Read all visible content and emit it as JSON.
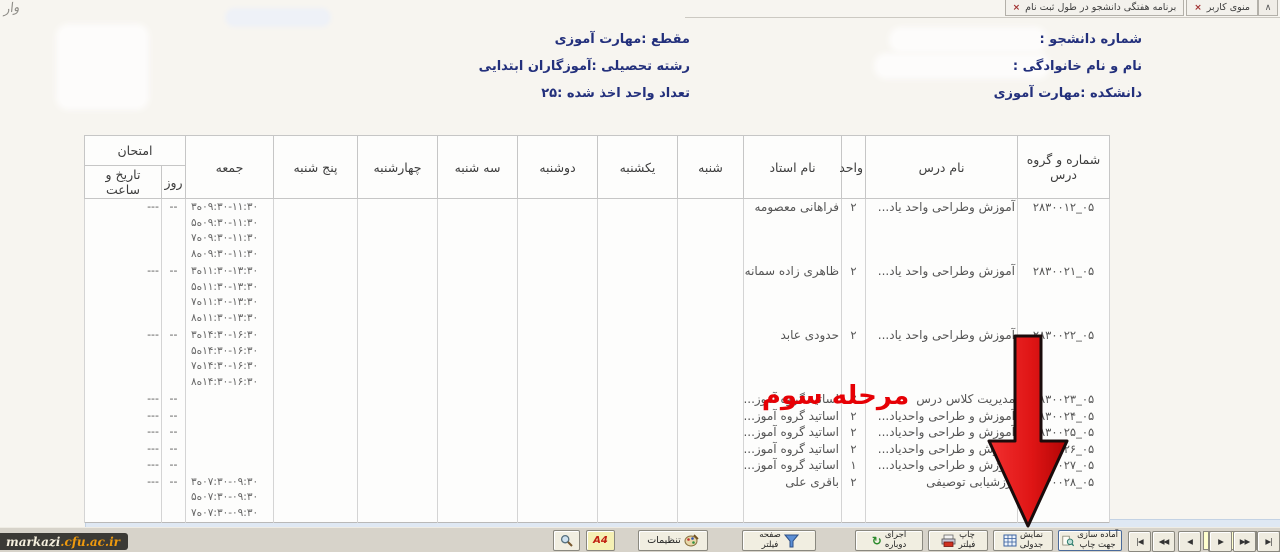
{
  "tabs": [
    {
      "close": "×",
      "label": "برنامه هفتگی دانشجو در طول ثبت نام"
    },
    {
      "close": "×",
      "label": "منوی کاربر"
    }
  ],
  "corner_glyph": "∧",
  "watermark": "وار",
  "student": {
    "id_label": "شماره دانشجو :",
    "name_label": "نام و نام خانوادگی :",
    "faculty": "دانشکده :مهارت آموزی",
    "level": "مقطع :مهارت آموزی",
    "major": "رشته تحصیلی :آموزگاران ابتدایی",
    "units_taken": "تعداد واحد اخذ شده :۲۵"
  },
  "table": {
    "headers": {
      "course_no": "شماره و گروه درس",
      "course_name": "نام درس",
      "units": "واحد",
      "teacher": "نام استاد",
      "days": [
        "شنبه",
        "یکشنبه",
        "دوشنبه",
        "سه شنبه",
        "چهارشنبه",
        "پنج شنبه",
        "جمعه"
      ],
      "exam_group": "امتحان",
      "exam_day": "روز",
      "exam_datetime": "تاریخ و ساعت"
    },
    "rows": [
      {
        "no": "۲۸۳۰۰۱۲_۰۵",
        "name": "آموزش وطراحی واحد یاد...",
        "units": "۲",
        "teacher": "فراهانی معصومه",
        "friday": [
          "۳ه۰۹:۳۰-۱۱:۳۰",
          "۵ه۰۹:۳۰-۱۱:۳۰",
          "۷ه۰۹:۳۰-۱۱:۳۰",
          "۸ه۰۹:۳۰-۱۱:۳۰"
        ],
        "exam_day": "--",
        "exam_datetime": "---"
      },
      {
        "no": "۲۸۳۰۰۲۱_۰۵",
        "name": "آموزش وطراحی واحد یاد...",
        "units": "۲",
        "teacher": "ظاهری زاده سمانه",
        "friday": [
          "۳ه۱۱:۳۰-۱۳:۳۰",
          "۵ه۱۱:۳۰-۱۳:۳۰",
          "۷ه۱۱:۳۰-۱۳:۳۰",
          "۸ه۱۱:۳۰-۱۳:۳۰"
        ],
        "exam_day": "--",
        "exam_datetime": "---"
      },
      {
        "no": "۲۸۳۰۰۲۲_۰۵",
        "name": "آموزش وطراحی واحد یاد...",
        "units": "۲",
        "teacher": "حدودی عابد",
        "friday": [
          "۳ه۱۴:۳۰-۱۶:۳۰",
          "۵ه۱۴:۳۰-۱۶:۳۰",
          "۷ه۱۴:۳۰-۱۶:۳۰",
          "۸ه۱۴:۳۰-۱۶:۳۰"
        ],
        "exam_day": "--",
        "exam_datetime": "---"
      },
      {
        "no": "۲۸۳۰۰۲۳_۰۵",
        "name": "مدیریت کلاس درس",
        "units": "۲",
        "teacher": "اساتید گروه آموز...",
        "friday": [],
        "exam_day": "--",
        "exam_datetime": "---"
      },
      {
        "no": "۲۸۳۰۰۲۴_۰۵",
        "name": "آموزش و طراحی واحدیاد...",
        "units": "۲",
        "teacher": "اساتید گروه آموز...",
        "friday": [],
        "exam_day": "--",
        "exam_datetime": "---"
      },
      {
        "no": "۲۸۳۰۰۲۵_۰۵",
        "name": "آموزش و طراحی واحدیاد...",
        "units": "۲",
        "teacher": "اساتید گروه آموز...",
        "friday": [],
        "exam_day": "--",
        "exam_datetime": "---"
      },
      {
        "no": "۲۸۳۰۰۲۶_۰۵",
        "name": "آموزش و طراحی واحدیاد...",
        "units": "۲",
        "teacher": "اساتید گروه آموز...",
        "friday": [],
        "exam_day": "--",
        "exam_datetime": "---"
      },
      {
        "no": "۲۸۳۰۰۲۷_۰۵",
        "name": "آموزش و طراحی واحدیاد...",
        "units": "۱",
        "teacher": "اساتید گروه آموز...",
        "friday": [],
        "exam_day": "--",
        "exam_datetime": "---"
      },
      {
        "no": "۲۸۳۰۰۲۸_۰۵",
        "name": "ارزشیابی توصیفی",
        "units": "۲",
        "teacher": "باقری علی",
        "friday": [
          "۳ه۰۷:۳۰-۰۹:۳۰",
          "۵ه۰۷:۳۰-۰۹:۳۰",
          "۷ه۰۷:۳۰-۰۹:۳۰"
        ],
        "exam_day": "--",
        "exam_datetime": "---"
      }
    ]
  },
  "overlay": {
    "stage_text": "مرحله سوم"
  },
  "toolbar": {
    "a4_label": "A4",
    "settings_label": "تنظیمات",
    "filter_page": [
      "صفحه",
      "فیلتر"
    ],
    "rerun": [
      "اجرای",
      "دوباره"
    ],
    "print_filter": [
      "چاپ",
      "فیلتر"
    ],
    "table_view": [
      "نمایش",
      "جدولی"
    ],
    "prepare_print": [
      "آماده سازی",
      "جهت چاپ"
    ],
    "pager": {
      "first": "|◀",
      "fast_prev": "◀◀",
      "prev": "◀",
      "page_value": "۱",
      "next": "▶",
      "fast_next": "▶▶",
      "last": "▶|"
    }
  },
  "footer": {
    "logo_main": "markazi",
    "logo_domain": ".cfu.ac.ir"
  },
  "colors": {
    "accent_red": "#e60005",
    "navy_label": "#23307c",
    "toolbar_bg": "#d7d3ca",
    "page_input_bg": "#ffffce"
  }
}
